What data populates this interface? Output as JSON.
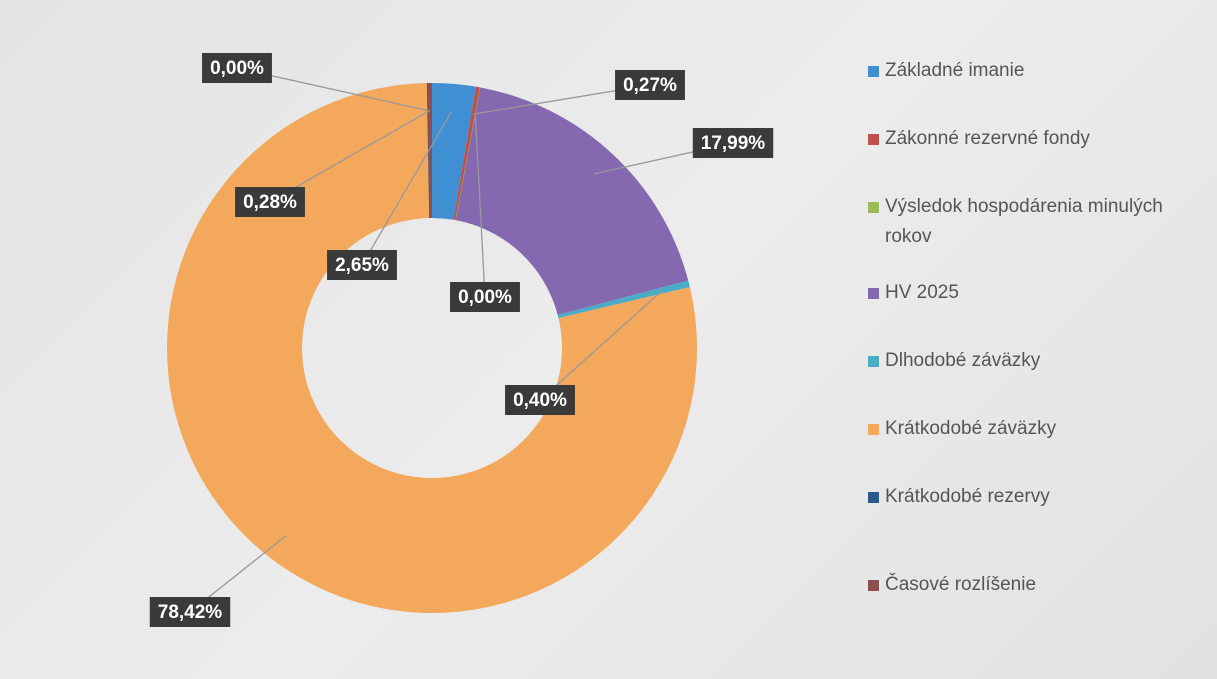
{
  "chart_data": {
    "type": "donut",
    "categories": [
      "Základné imanie",
      "Zákonné rezervné fondy",
      "Výsledok hospodárenia minulých rokov",
      "HV 2025",
      "Dlhodobé záväzky",
      "Krátkodobé záväzky",
      "Krátkodobé rezervy",
      "Časové rozlíšenie"
    ],
    "values": [
      2.65,
      0.27,
      0.0,
      17.99,
      0.4,
      78.42,
      0.0,
      0.28
    ],
    "value_labels": [
      "2,65%",
      "0,27%",
      "0,00%",
      "17,99%",
      "0,40%",
      "78,42%",
      "0,00%",
      "0,28%"
    ],
    "colors": [
      "#3f8fd2",
      "#c0504d",
      "#9bbb59",
      "#8468b0",
      "#4bacc6",
      "#f3a85c",
      "#2c5a8c",
      "#8b4f4f"
    ],
    "legend": "right"
  }
}
